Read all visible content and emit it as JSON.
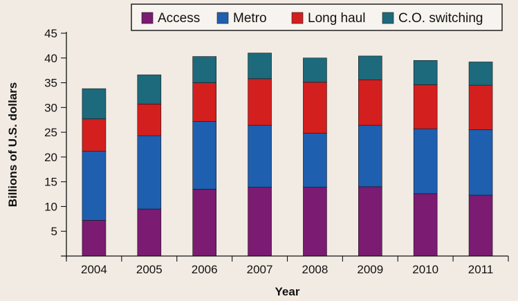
{
  "chart_data": {
    "type": "bar",
    "stacked": true,
    "categories": [
      "2004",
      "2005",
      "2006",
      "2007",
      "2008",
      "2009",
      "2010",
      "2011"
    ],
    "series": [
      {
        "name": "Access",
        "color": "#7b1b72",
        "values": [
          7.2,
          9.5,
          13.5,
          13.9,
          13.9,
          14,
          12.6,
          12.3
        ]
      },
      {
        "name": "Metro",
        "color": "#1f5fb0",
        "values": [
          14,
          14.8,
          13.7,
          12.5,
          10.9,
          12.4,
          13.1,
          13.2
        ]
      },
      {
        "name": "Long haul",
        "color": "#d41f1f",
        "values": [
          6.5,
          6.4,
          7.8,
          9.4,
          10.3,
          9.2,
          8.9,
          9
        ]
      },
      {
        "name": "C.O. switching",
        "color": "#1c6a7c",
        "values": [
          6.1,
          5.9,
          5.3,
          5.2,
          4.9,
          4.8,
          4.9,
          4.7
        ]
      }
    ],
    "xlabel": "Year",
    "ylabel": "Billions of U.S. dollars",
    "ylim": [
      0,
      45
    ],
    "yticks": [
      5,
      10,
      15,
      20,
      25,
      30,
      35,
      40,
      45
    ],
    "grid": false,
    "legend": "top"
  }
}
